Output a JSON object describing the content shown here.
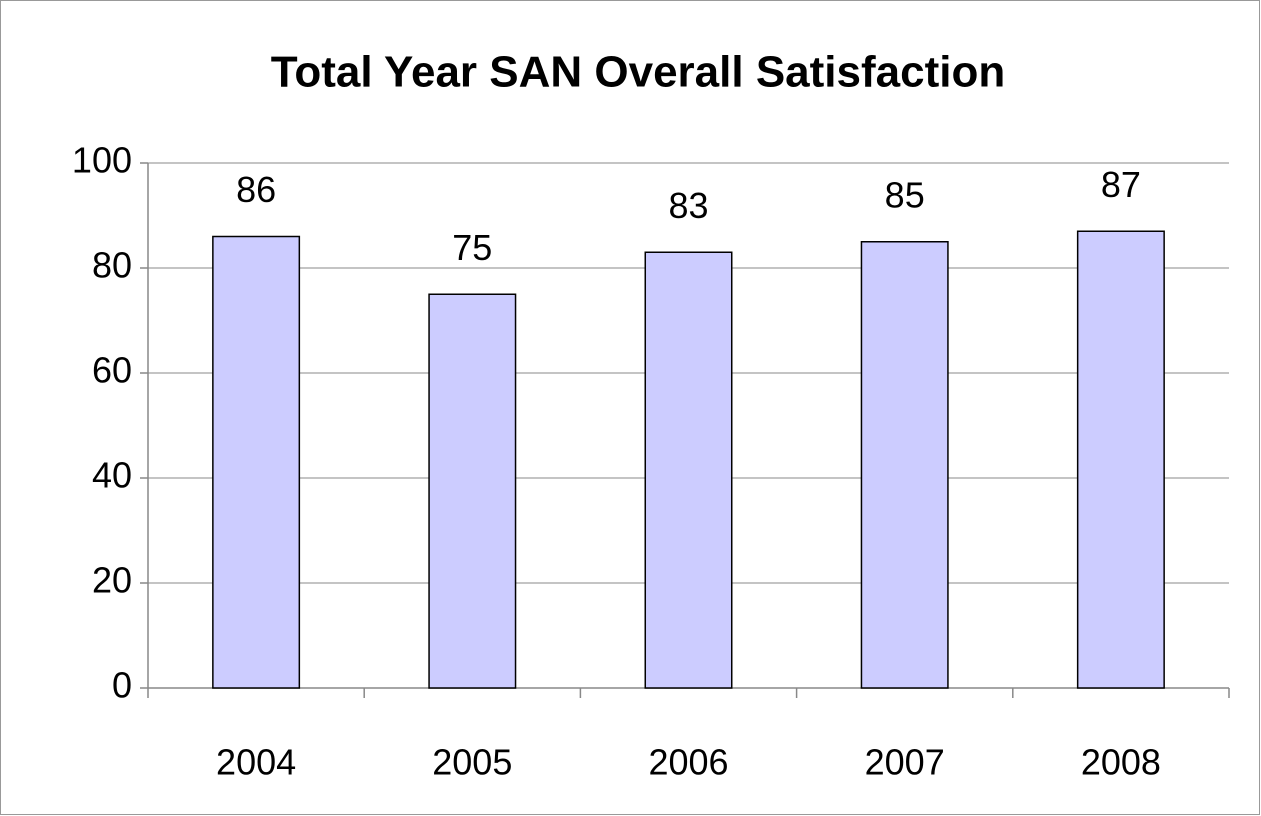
{
  "chart_data": {
    "type": "bar",
    "title": "Total Year SAN Overall Satisfaction",
    "categories": [
      "2004",
      "2005",
      "2006",
      "2007",
      "2008"
    ],
    "values": [
      86,
      75,
      83,
      85,
      87
    ],
    "color": "#ccccff",
    "ylim": [
      0,
      100
    ],
    "yticks": [
      0,
      20,
      40,
      60,
      80,
      100
    ],
    "grid": true
  }
}
